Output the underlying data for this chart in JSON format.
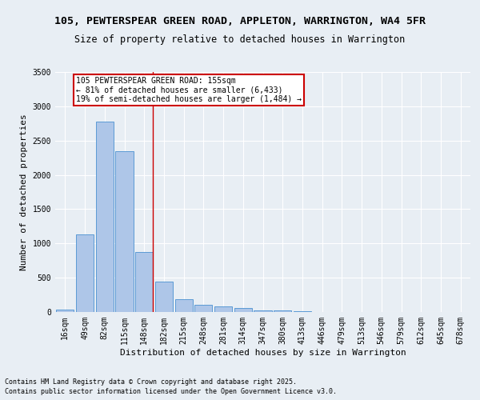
{
  "title_line1": "105, PEWTERSPEAR GREEN ROAD, APPLETON, WARRINGTON, WA4 5FR",
  "title_line2": "Size of property relative to detached houses in Warrington",
  "xlabel": "Distribution of detached houses by size in Warrington",
  "ylabel": "Number of detached properties",
  "footnote1": "Contains HM Land Registry data © Crown copyright and database right 2025.",
  "footnote2": "Contains public sector information licensed under the Open Government Licence v3.0.",
  "categories": [
    "16sqm",
    "49sqm",
    "82sqm",
    "115sqm",
    "148sqm",
    "182sqm",
    "215sqm",
    "248sqm",
    "281sqm",
    "314sqm",
    "347sqm",
    "380sqm",
    "413sqm",
    "446sqm",
    "479sqm",
    "513sqm",
    "546sqm",
    "579sqm",
    "612sqm",
    "645sqm",
    "678sqm"
  ],
  "values": [
    40,
    1130,
    2780,
    2340,
    880,
    440,
    185,
    105,
    85,
    55,
    25,
    18,
    10,
    5,
    2,
    2,
    1,
    0,
    0,
    0,
    0
  ],
  "bar_color": "#aec6e8",
  "bar_edge_color": "#5b9bd5",
  "highlight_line_index": 4,
  "highlight_line_color": "#cc0000",
  "annotation_text": "105 PEWTERSPEAR GREEN ROAD: 155sqm\n← 81% of detached houses are smaller (6,433)\n19% of semi-detached houses are larger (1,484) →",
  "annotation_box_color": "#cc0000",
  "ylim": [
    0,
    3500
  ],
  "yticks": [
    0,
    500,
    1000,
    1500,
    2000,
    2500,
    3000,
    3500
  ],
  "bg_color": "#e8eef4",
  "plot_bg_color": "#e8eef4",
  "grid_color": "#ffffff",
  "title_fontsize": 9.5,
  "subtitle_fontsize": 8.5,
  "tick_fontsize": 7,
  "label_fontsize": 8,
  "footnote_fontsize": 6
}
